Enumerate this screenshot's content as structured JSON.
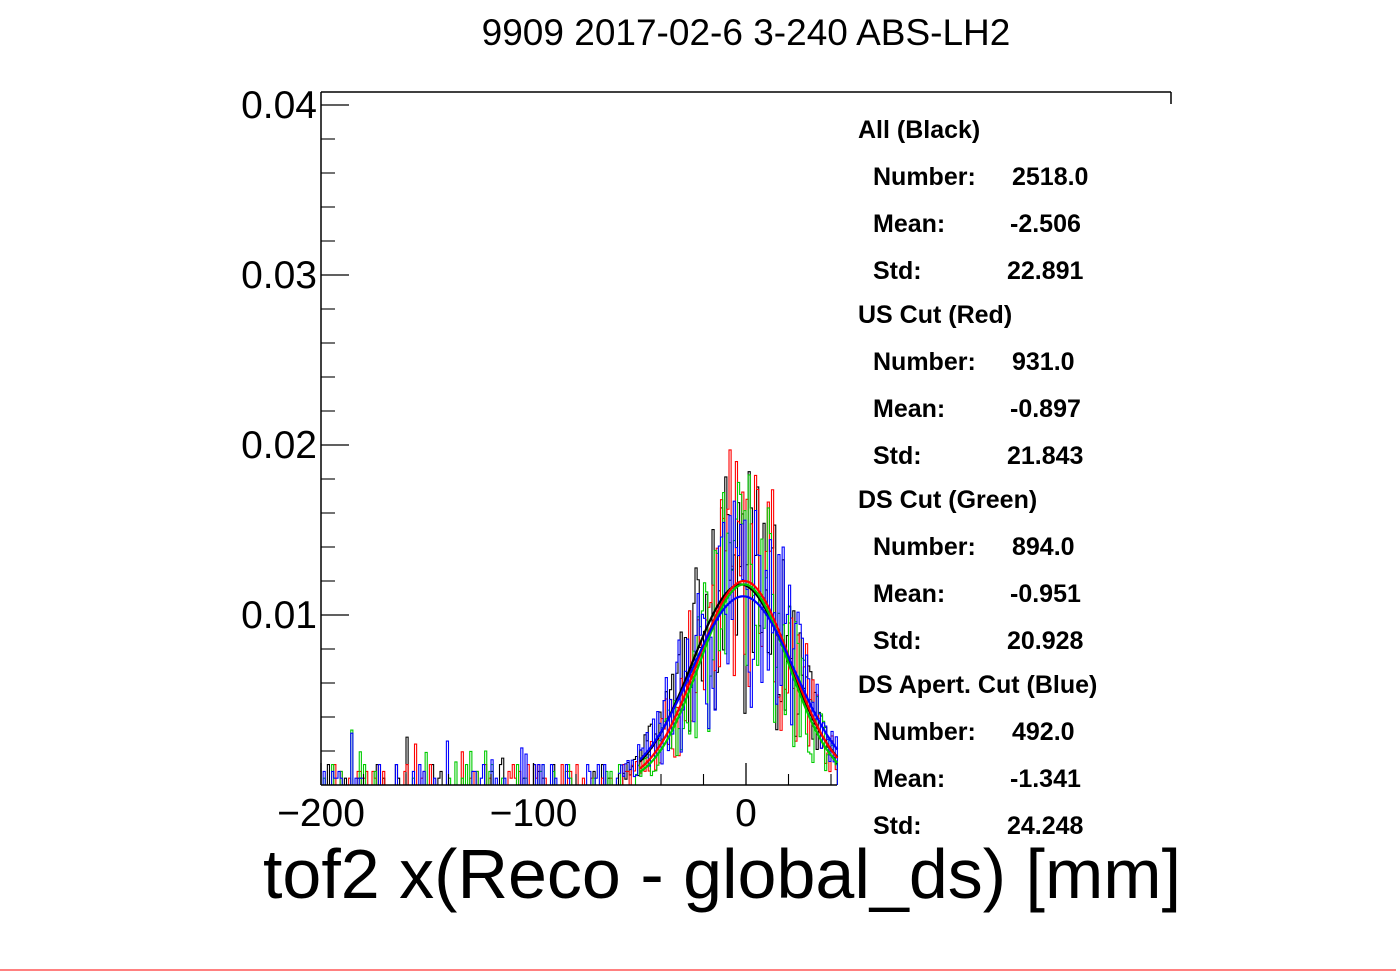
{
  "chart_data": {
    "type": "histogram",
    "title": "9909 2017-02-6 3-240 ABS-LH2",
    "xlabel": "tof2 x(Reco - global_ds) [mm]",
    "ylabel": "",
    "xlim": [
      -200,
      43
    ],
    "ylim": [
      0,
      0.0405
    ],
    "x_ticks": [
      {
        "value": -200,
        "label": "−200"
      },
      {
        "value": -100,
        "label": "−100"
      },
      {
        "value": 0,
        "label": "0"
      }
    ],
    "y_ticks": [
      {
        "value": 0.01,
        "label": "0.01"
      },
      {
        "value": 0.02,
        "label": "0.02"
      },
      {
        "value": 0.03,
        "label": "0.03"
      },
      {
        "value": 0.04,
        "label": "0.04"
      }
    ],
    "bin_width": 1,
    "series": [
      {
        "name": "All (Black)",
        "color": "#000000",
        "number": "2518.0",
        "mean": "-2.506",
        "std": "22.891",
        "gauss": {
          "amp": 0.0118,
          "mu": -2.506,
          "sigma": 22.891
        },
        "seed": 11
      },
      {
        "name": "US Cut (Red)",
        "color": "#ff0000",
        "number": "931.0",
        "mean": "-0.897",
        "std": "21.843",
        "gauss": {
          "amp": 0.012,
          "mu": -0.897,
          "sigma": 21.843
        },
        "seed": 23
      },
      {
        "name": "DS Cut (Green)",
        "color": "#00cc00",
        "number": "894.0",
        "mean": "-0.951",
        "std": "20.928",
        "gauss": {
          "amp": 0.0118,
          "mu": -0.951,
          "sigma": 20.928
        },
        "seed": 37
      },
      {
        "name": "DS Apert. Cut (Blue)",
        "color": "#0000ff",
        "number": "492.0",
        "mean": "-1.341",
        "std": "24.248",
        "gauss": {
          "amp": 0.0111,
          "mu": -1.341,
          "sigma": 24.248
        },
        "seed": 53
      }
    ]
  },
  "stats": {
    "labels": {
      "number": "Number:",
      "mean": "Mean:",
      "std": "Std:"
    },
    "blocks": [
      {
        "title": "All (Black)",
        "number": "2518.0",
        "mean": "-2.506",
        "std": "22.891"
      },
      {
        "title": "US Cut (Red)",
        "number": "931.0",
        "mean": "-0.897",
        "std": "21.843"
      },
      {
        "title": "DS Cut (Green)",
        "number": "894.0",
        "mean": "-0.951",
        "std": "20.928"
      },
      {
        "title": "DS Apert. Cut (Blue)",
        "number": "492.0",
        "mean": "-1.341",
        "std": "24.248"
      }
    ]
  }
}
